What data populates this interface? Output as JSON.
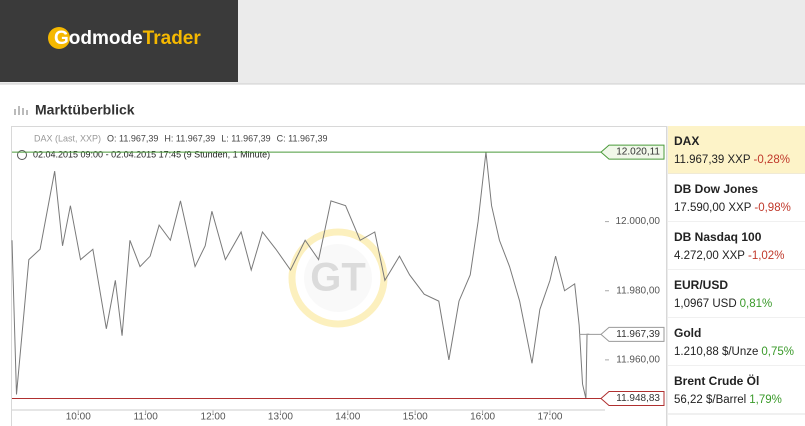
{
  "header": {
    "logo_part1": "Godmode",
    "logo_part2": "Trader"
  },
  "section_title": "Marktüberblick",
  "chart": {
    "type": "line",
    "info": "DAX (Last, XXP)",
    "ohlc": [
      "O: 11.967,39",
      "H: 11.967,39",
      "L: 11.967,39",
      "C: 11.967,39"
    ],
    "period": "02.04.2015 09:00 - 02.04.2015 17:45 (9 Stunden, 1 Minute)",
    "watermark": "GT",
    "x": [
      "09:01",
      "09:05",
      "09:16",
      "09:26",
      "09:39",
      "09:46",
      "09:53",
      "10:02",
      "10:13",
      "10:25",
      "10:33",
      "10:39",
      "10:46",
      "10:55",
      "11:04",
      "11:12",
      "11:22",
      "11:31",
      "11:44",
      "11:53",
      "11:59",
      "12:11",
      "12:25",
      "12:34",
      "12:44",
      "12:56",
      "13:09",
      "13:22",
      "13:34",
      "13:45",
      "13:58",
      "14:11",
      "14:24",
      "14:33",
      "14:46",
      "14:55",
      "15:08",
      "15:21",
      "15:30",
      "15:39",
      "15:49",
      "15:56",
      "16:03",
      "16:08",
      "16:15",
      "16:24",
      "16:33",
      "16:44",
      "16:51",
      "17:00",
      "17:05",
      "17:13",
      "17:22",
      "17:26",
      "17:29",
      "17:32",
      "17:33",
      "17:35"
    ],
    "series": [
      {
        "color": "#7a7a7a",
        "values": [
          11994.6,
          11950.0,
          11989.0,
          11992.0,
          12014.6,
          11993.0,
          12004.6,
          11989.0,
          11992.0,
          11969.0,
          11983.0,
          11967.0,
          11994.6,
          11987.0,
          11990.0,
          11999.0,
          11994.6,
          12006.0,
          11987.0,
          11993.0,
          12003.0,
          11989.0,
          11997.0,
          11986.0,
          11997.0,
          11992.0,
          11986.0,
          11994.6,
          11989.0,
          12006.0,
          12004.6,
          11994.6,
          11997.0,
          11983.0,
          11990.0,
          11984.6,
          11979.0,
          11977.0,
          11960.0,
          11977.0,
          11984.6,
          12000.0,
          12020.1,
          12004.6,
          11994.6,
          11987.0,
          11977.0,
          11959.0,
          11974.6,
          11983.0,
          11990.0,
          11980.0,
          11982.0,
          11970.0,
          11953.0,
          11948.8,
          11967.4,
          11967.4
        ]
      }
    ],
    "xlim": [
      "09:01",
      "17:49"
    ],
    "xticks": [
      "10:00",
      "11:00",
      "12:00",
      "13:00",
      "14:00",
      "15:00",
      "16:00",
      "17:00"
    ],
    "ylim": [
      11945.5,
      12026.5
    ],
    "yticks": [
      {
        "value": 11960,
        "label": "11.960,00"
      },
      {
        "value": 11980,
        "label": "11.980,00"
      },
      {
        "value": 12000,
        "label": "12.000,00"
      }
    ],
    "reference_lines": [
      {
        "value": 12020.11,
        "label": "12.020,11",
        "color": "#4a9a3a"
      },
      {
        "value": 11948.83,
        "label": "11.948,83",
        "color": "#b03030"
      },
      {
        "value": 11967.39,
        "label": "11.967,39",
        "color": "#9a9a9a"
      }
    ]
  },
  "watchlist": [
    {
      "name": "DAX",
      "price": "11.967,39 XXP",
      "change": "-0,28%"
    },
    {
      "name": "DB Dow Jones",
      "price": "17.590,00 XXP",
      "change": "-0,98%"
    },
    {
      "name": "DB Nasdaq 100",
      "price": "4.272,00 XXP",
      "change": "-1,02%"
    },
    {
      "name": "EUR/USD",
      "price": "1,0967 USD",
      "change": "0,81%"
    },
    {
      "name": "Gold",
      "price": "1.210,88 $/Unze",
      "change": "0,75%"
    },
    {
      "name": "Brent Crude Öl",
      "price": "56,22 $/Barrel",
      "change": "1,79%"
    }
  ]
}
